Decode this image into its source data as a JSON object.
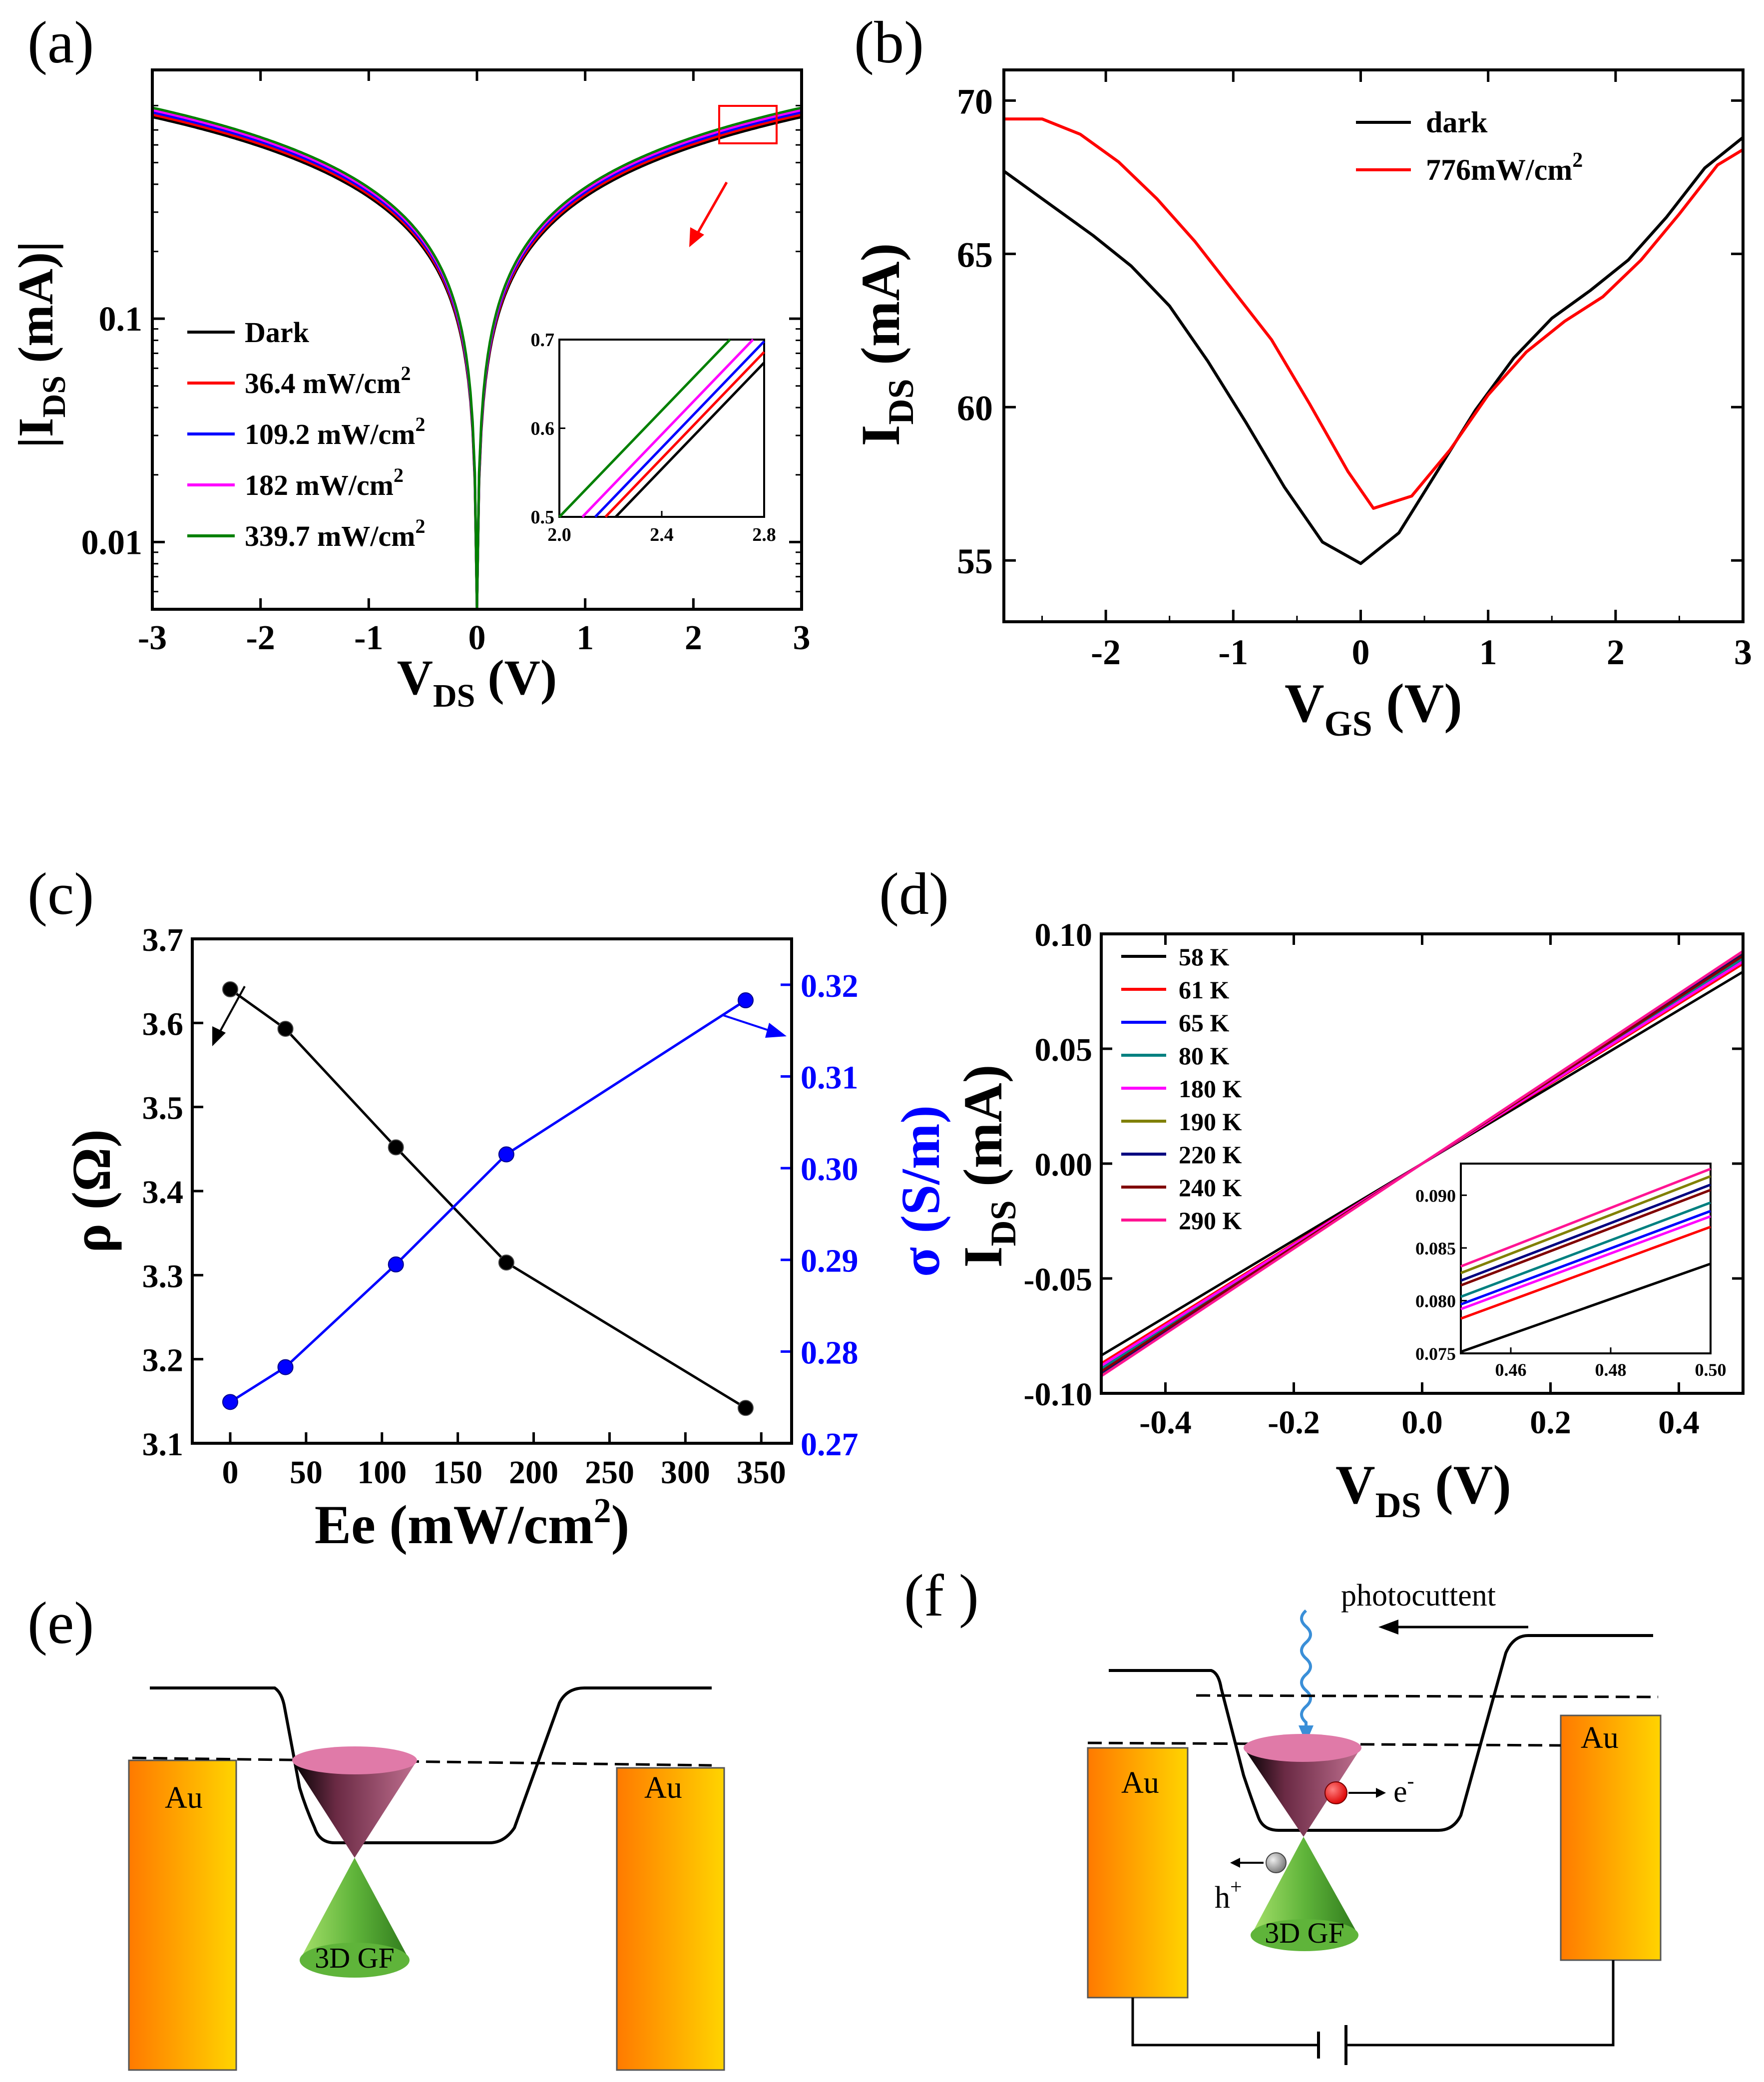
{
  "colors": {
    "black": "#000000",
    "red": "#ff0000",
    "blue": "#0000ff",
    "magenta": "#ff00ff",
    "green": "#008000",
    "teal": "#008080",
    "olive": "#808000",
    "navy": "#000080",
    "darkred": "#800000",
    "pink": "#ff1493",
    "rho_axis": "#000000",
    "sigma_axis": "#0000ff",
    "electrode_dark": "#ff7a00",
    "electrode_light": "#ffd400",
    "cone_upper": "#8a3d5c",
    "cone_lower": "#5aaa2a"
  },
  "panels": {
    "a": {
      "label": "(a)"
    },
    "b": {
      "label": "(b)"
    },
    "c": {
      "label": "(c)"
    },
    "d": {
      "label": "(d)"
    },
    "e": {
      "label": "(e)"
    },
    "f": {
      "label": "(f )"
    }
  },
  "chart_data": [
    {
      "id": "a",
      "type": "line",
      "xlabel_main": "V",
      "xlabel_sub": "DS",
      "xlabel_tail": " (V)",
      "ylabel_main": "|I",
      "ylabel_sub": "DS",
      "ylabel_tail": " (mA)|",
      "yscale": "log",
      "xlim": [
        -3,
        3
      ],
      "ylim": [
        0.005,
        1.3
      ],
      "xticks": [
        -3,
        -2,
        -1,
        0,
        1,
        2,
        3
      ],
      "xtick_labels": [
        "-3",
        "-2",
        "-1",
        "0",
        "1",
        "2",
        "3"
      ],
      "yticks": [
        0.01,
        0.1
      ],
      "ytick_labels": [
        "0.01",
        "0.1"
      ],
      "series": [
        {
          "name": "Dark",
          "color": "#000000",
          "value_at_3V": 0.8
        },
        {
          "name": "36.4 mW/cm2",
          "color": "#ff0000",
          "value_at_3V": 0.82
        },
        {
          "name": "109.2 mW/cm2",
          "color": "#0000ff",
          "value_at_3V": 0.84
        },
        {
          "name": "182 mW/cm2",
          "color": "#ff00ff",
          "value_at_3V": 0.86
        },
        {
          "name": "339.7 mW/cm2",
          "color": "#008000",
          "value_at_3V": 0.88
        }
      ],
      "legend": [
        {
          "label": "Dark",
          "sup": ""
        },
        {
          "label": "36.4 mW/cm",
          "sup": "2"
        },
        {
          "label": "109.2 mW/cm",
          "sup": "2"
        },
        {
          "label": "182 mW/cm",
          "sup": "2"
        },
        {
          "label": "339.7 mW/cm",
          "sup": "2"
        }
      ],
      "inset": {
        "xlim": [
          2.0,
          2.8
        ],
        "ylim": [
          0.5,
          0.7
        ],
        "xticks": [
          2.0,
          2.4,
          2.8
        ],
        "xtick_labels": [
          "2.0",
          "2.4",
          "2.8"
        ],
        "yticks": [
          0.5,
          0.6,
          0.7
        ],
        "ytick_labels": [
          "0.5",
          "0.6",
          "0.7"
        ],
        "x_at_05": [
          2.22,
          2.18,
          2.14,
          2.09,
          2.0
        ],
        "slope": 0.3
      }
    },
    {
      "id": "b",
      "type": "line",
      "xlabel_main": "V",
      "xlabel_sub": "GS",
      "xlabel_tail": " (V)",
      "ylabel_main": "I",
      "ylabel_sub": "DS",
      "ylabel_tail": " (mA)",
      "xlim": [
        -2.8,
        3
      ],
      "ylim": [
        53,
        71
      ],
      "xticks": [
        -2,
        -1,
        0,
        1,
        2,
        3
      ],
      "xtick_labels": [
        "-2",
        "-1",
        "0",
        "1",
        "2",
        "3"
      ],
      "yticks": [
        55,
        60,
        65,
        70
      ],
      "ytick_labels": [
        "55",
        "60",
        "65",
        "70"
      ],
      "legend": [
        {
          "label": "dark",
          "sup": ""
        },
        {
          "label": "776mW/cm",
          "sup": "2"
        }
      ],
      "series": [
        {
          "name": "dark",
          "color": "#000000",
          "x": [
            -2.8,
            -2.4,
            -2.1,
            -1.8,
            -1.5,
            -1.2,
            -0.9,
            -0.6,
            -0.3,
            0.0,
            0.3,
            0.6,
            0.9,
            1.2,
            1.5,
            1.8,
            2.1,
            2.4,
            2.7,
            3.0
          ],
          "y": [
            67.7,
            66.5,
            65.6,
            64.6,
            63.3,
            61.5,
            59.5,
            57.4,
            55.6,
            54.9,
            55.9,
            57.9,
            59.9,
            61.6,
            62.9,
            63.8,
            64.8,
            66.2,
            67.8,
            68.8
          ]
        },
        {
          "name": "776mW/cm2",
          "color": "#ff0000",
          "x": [
            -2.8,
            -2.5,
            -2.2,
            -1.9,
            -1.6,
            -1.3,
            -1.0,
            -0.7,
            -0.4,
            -0.1,
            0.1,
            0.4,
            0.7,
            1.0,
            1.3,
            1.6,
            1.9,
            2.2,
            2.5,
            2.8,
            3.0
          ],
          "y": [
            69.4,
            69.4,
            68.9,
            68.0,
            66.8,
            65.4,
            63.8,
            62.2,
            60.1,
            57.9,
            56.7,
            57.1,
            58.6,
            60.4,
            61.8,
            62.8,
            63.6,
            64.8,
            66.3,
            67.9,
            68.4
          ]
        }
      ]
    },
    {
      "id": "c",
      "type": "line",
      "xlabel": "Ee   (mW/cm",
      "xlabel_sup": "2",
      "xlabel_tail": ")",
      "ylabel_left": "ρ (Ω)",
      "ylabel_right": "σ (S/m)",
      "xlim": [
        -25,
        370
      ],
      "ylim_left": [
        3.1,
        3.7
      ],
      "ylim_right": [
        0.27,
        0.325
      ],
      "xticks": [
        0,
        50,
        100,
        150,
        200,
        250,
        300,
        350
      ],
      "xtick_labels": [
        "0",
        "50",
        "100",
        "150",
        "200",
        "250",
        "300",
        "350"
      ],
      "yticks_left": [
        3.1,
        3.2,
        3.3,
        3.4,
        3.5,
        3.6,
        3.7
      ],
      "ytick_labels_left": [
        "3.1",
        "3.2",
        "3.3",
        "3.4",
        "3.5",
        "3.6",
        "3.7"
      ],
      "yticks_right": [
        0.27,
        0.28,
        0.29,
        0.3,
        0.31,
        0.32
      ],
      "ytick_labels_right": [
        "0.27",
        "0.28",
        "0.29",
        "0.30",
        "0.31",
        "0.32"
      ],
      "x": [
        0,
        36.4,
        109.2,
        182,
        339.7
      ],
      "series": [
        {
          "name": "ρ",
          "axis": "left",
          "color": "#000000",
          "values": [
            3.64,
            3.593,
            3.452,
            3.315,
            3.142
          ]
        },
        {
          "name": "σ",
          "axis": "right",
          "color": "#0000ff",
          "values": [
            0.2745,
            0.2783,
            0.2895,
            0.3015,
            0.3183
          ]
        }
      ]
    },
    {
      "id": "d",
      "type": "line",
      "xlabel_main": "V",
      "xlabel_sub": "DS",
      "xlabel_tail": " (V)",
      "ylabel_main": "I",
      "ylabel_sub": "DS",
      "ylabel_tail": " (mA)",
      "xlim": [
        -0.5,
        0.5
      ],
      "ylim": [
        -0.1,
        0.1
      ],
      "xticks": [
        -0.4,
        -0.2,
        0.0,
        0.2,
        0.4
      ],
      "xtick_labels": [
        "-0.4",
        "-0.2",
        "0.0",
        "0.2",
        "0.4"
      ],
      "yticks": [
        -0.1,
        -0.05,
        0.0,
        0.05,
        0.1
      ],
      "ytick_labels": [
        "-0.10",
        "-0.05",
        "0.00",
        "0.05",
        "0.10"
      ],
      "series": [
        {
          "name": "58 K",
          "color": "#000000",
          "value_at_05V": 0.0835
        },
        {
          "name": "61 K",
          "color": "#ff0000",
          "value_at_05V": 0.087
        },
        {
          "name": "65 K",
          "color": "#0000ff",
          "value_at_05V": 0.0885
        },
        {
          "name": "80 K",
          "color": "#008080",
          "value_at_05V": 0.0893
        },
        {
          "name": "180 K",
          "color": "#ff00ff",
          "value_at_05V": 0.088
        },
        {
          "name": "190 K",
          "color": "#808000",
          "value_at_05V": 0.0918
        },
        {
          "name": "220 K",
          "color": "#000080",
          "value_at_05V": 0.091
        },
        {
          "name": "240 K",
          "color": "#800000",
          "value_at_05V": 0.0905
        },
        {
          "name": "290 K",
          "color": "#ff1493",
          "value_at_05V": 0.0925
        }
      ],
      "inset": {
        "xlim": [
          0.45,
          0.5
        ],
        "ylim": [
          0.075,
          0.093
        ],
        "xticks": [
          0.46,
          0.48,
          0.5
        ],
        "xtick_labels": [
          "0.46",
          "0.48",
          "0.50"
        ],
        "yticks": [
          0.075,
          0.08,
          0.085,
          0.09
        ],
        "ytick_labels": [
          "0.075",
          "0.080",
          "0.085",
          "0.090"
        ]
      }
    }
  ],
  "diagram_e": {
    "left_electrode": "Au",
    "right_electrode": "Au",
    "material": "3D GF"
  },
  "diagram_f": {
    "left_electrode": "Au",
    "right_electrode": "Au",
    "material": "3D GF",
    "photocurrent_label": "photocuttent",
    "electron_label": "e",
    "electron_sup": "-",
    "hole_label": "h",
    "hole_sup": "+"
  }
}
